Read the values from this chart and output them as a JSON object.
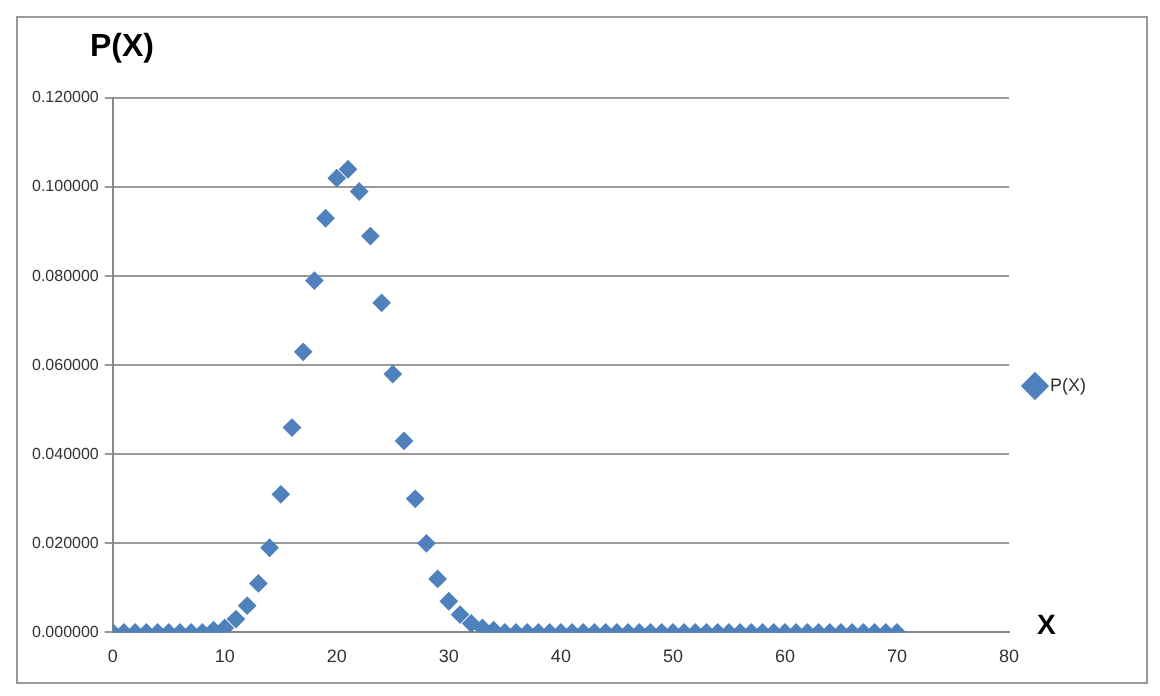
{
  "chart_data": {
    "type": "scatter",
    "ylabel": "P(X)",
    "xlabel": "X",
    "x": [
      0,
      1,
      2,
      3,
      4,
      5,
      6,
      7,
      8,
      9,
      10,
      11,
      12,
      13,
      14,
      15,
      16,
      17,
      18,
      19,
      20,
      21,
      22,
      23,
      24,
      25,
      26,
      27,
      28,
      29,
      30,
      31,
      32,
      33,
      34,
      35,
      36,
      37,
      38,
      39,
      40,
      41,
      42,
      43,
      44,
      45,
      46,
      47,
      48,
      49,
      50,
      51,
      52,
      53,
      54,
      55,
      56,
      57,
      58,
      59,
      60,
      61,
      62,
      63,
      64,
      65,
      66,
      67,
      68,
      69,
      70
    ],
    "series": [
      {
        "name": "P(X)",
        "color": "#4f81bd",
        "values": [
          0,
          0,
          0,
          0,
          0,
          0,
          0,
          0,
          0,
          0.0005,
          0.001,
          0.003,
          0.006,
          0.011,
          0.019,
          0.031,
          0.046,
          0.063,
          0.079,
          0.093,
          0.102,
          0.104,
          0.099,
          0.089,
          0.074,
          0.058,
          0.043,
          0.03,
          0.02,
          0.012,
          0.007,
          0.004,
          0.002,
          0.001,
          0.0005,
          0,
          0,
          0,
          0,
          0,
          0,
          0,
          0,
          0,
          0,
          0,
          0,
          0,
          0,
          0,
          0,
          0,
          0,
          0,
          0,
          0,
          0,
          0,
          0,
          0,
          0,
          0,
          0,
          0,
          0,
          0,
          0,
          0,
          0,
          0,
          0
        ]
      }
    ],
    "xlim": [
      0,
      80
    ],
    "xticks": [
      0,
      10,
      20,
      30,
      40,
      50,
      60,
      70,
      80
    ],
    "ylim": [
      0,
      0.12
    ],
    "yticks": [
      {
        "value": 0,
        "label": "0.000000"
      },
      {
        "value": 0.02,
        "label": "0.020000"
      },
      {
        "value": 0.04,
        "label": "0.040000"
      },
      {
        "value": 0.06,
        "label": "0.060000"
      },
      {
        "value": 0.08,
        "label": "0.080000"
      },
      {
        "value": 0.1,
        "label": "0.100000"
      },
      {
        "value": 0.12,
        "label": "0.120000"
      }
    ],
    "grid": "y",
    "legend": "right",
    "marker": "diamond"
  }
}
